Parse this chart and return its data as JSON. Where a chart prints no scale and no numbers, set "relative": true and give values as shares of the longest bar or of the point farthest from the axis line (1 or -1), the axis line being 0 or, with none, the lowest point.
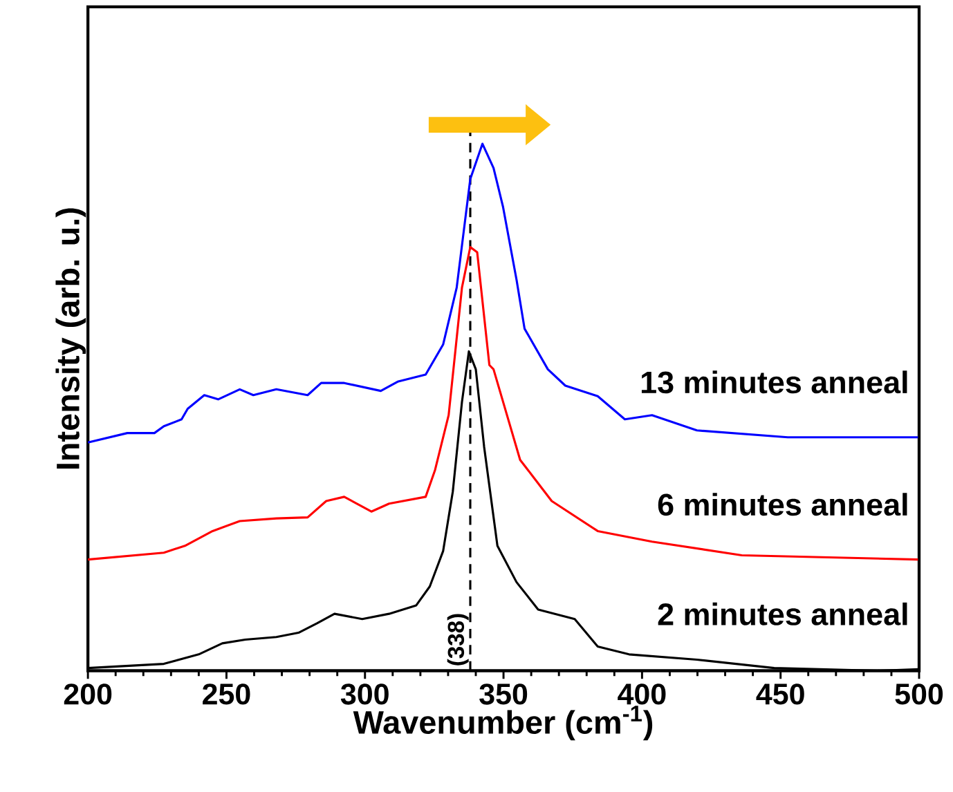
{
  "chart_data": {
    "type": "line",
    "relative": true,
    "xlabel": "Wavenumber (cm$^{-1}$)",
    "ylabel": "Intensity (arb. u.)",
    "xlim": [
      200,
      500
    ],
    "xticks": [
      200,
      250,
      300,
      350,
      400,
      450,
      500
    ],
    "legend": false,
    "ref_lines": [
      {
        "axis": "x",
        "value": 338,
        "label": "(338)",
        "line_style": "dashed",
        "color": "#000000"
      }
    ],
    "series": [
      {
        "name": "2 minutes anneal",
        "color": "#000000",
        "x": [
          200,
          227.4,
          240,
          248.5,
          256.8,
          268,
          276,
          282.7,
          289,
          299,
          308.7,
          318.5,
          323.4,
          328.2,
          331.7,
          335,
          337.5,
          340,
          343,
          347.8,
          354.7,
          362.5,
          375.7,
          384,
          395.3,
          419.8,
          447.7,
          485,
          500
        ],
        "values": [
          0.005,
          0.013,
          0.031,
          0.052,
          0.059,
          0.064,
          0.072,
          0.09,
          0.108,
          0.098,
          0.108,
          0.124,
          0.16,
          0.227,
          0.34,
          0.51,
          0.606,
          0.572,
          0.425,
          0.237,
          0.168,
          0.116,
          0.098,
          0.046,
          0.031,
          0.021,
          0.005,
          0.0,
          0.003
        ]
      },
      {
        "name": "6 minutes anneal",
        "color": "#ff0000",
        "x": [
          200,
          227.4,
          235,
          245,
          254.8,
          268,
          279.3,
          286,
          292.5,
          302.3,
          308.7,
          321.9,
          325.3,
          330.2,
          335,
          338,
          340.5,
          344.9,
          346.4,
          356,
          361,
          367.4,
          384,
          403.6,
          436,
          499.6
        ],
        "values": [
          0.211,
          0.224,
          0.237,
          0.265,
          0.284,
          0.289,
          0.291,
          0.322,
          0.33,
          0.302,
          0.317,
          0.33,
          0.381,
          0.485,
          0.727,
          0.804,
          0.794,
          0.58,
          0.572,
          0.4,
          0.366,
          0.322,
          0.265,
          0.245,
          0.219,
          0.211
        ]
      },
      {
        "name": "13 minutes anneal",
        "color": "#0000ff",
        "x": [
          200,
          214.2,
          224,
          227.4,
          233.8,
          236,
          242,
          247,
          254.8,
          259.7,
          268,
          279.3,
          284.2,
          292.5,
          305.7,
          312,
          321.9,
          328.2,
          333.1,
          338,
          342.4,
          346.4,
          349.8,
          354.7,
          357.6,
          366,
          372.3,
          384,
          393.8,
          403.6,
          419.8,
          452.6,
          499.6
        ],
        "values": [
          0.433,
          0.451,
          0.451,
          0.464,
          0.477,
          0.497,
          0.523,
          0.515,
          0.534,
          0.523,
          0.534,
          0.523,
          0.546,
          0.546,
          0.531,
          0.549,
          0.562,
          0.619,
          0.727,
          0.933,
          1.0,
          0.954,
          0.881,
          0.742,
          0.649,
          0.572,
          0.541,
          0.521,
          0.477,
          0.485,
          0.456,
          0.443,
          0.443
        ]
      }
    ]
  }
}
